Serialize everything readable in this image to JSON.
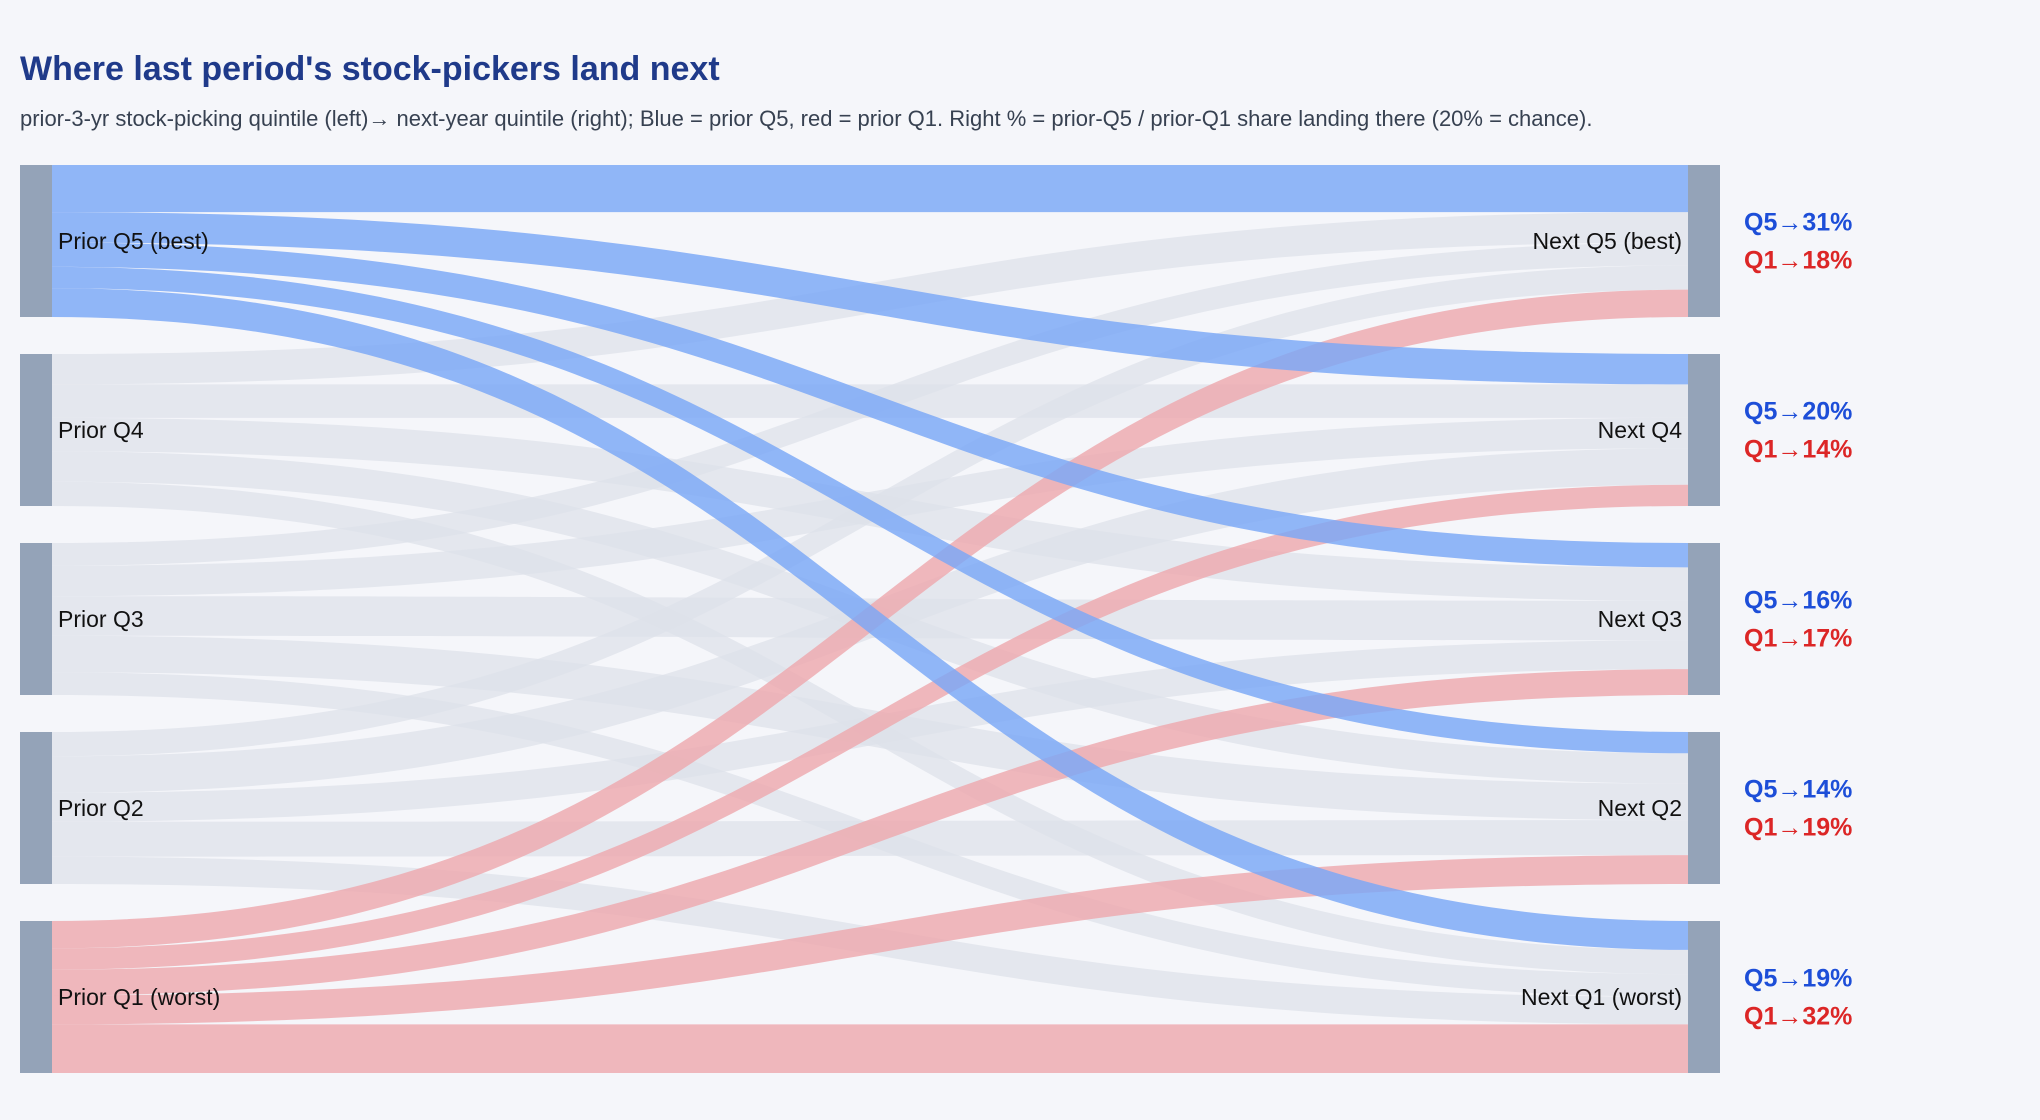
{
  "chart_data": {
    "type": "sankey",
    "title": "Where last period's stock-pickers land next",
    "subtitle": "prior-3-yr stock-picking quintile (left)→ next-year quintile (right); Blue = prior Q5, red = prior Q1. Right % = prior-Q5 / prior-Q1 share landing there (20% = chance).",
    "colors": {
      "q5_link": "#7aa7f7",
      "q1_link": "#eda7ad",
      "other_link": "#dde2ea",
      "node": "#94a3b8",
      "q5_text": "#1d4ed8",
      "q1_text": "#dc2626",
      "background": "#f5f6fa"
    },
    "sources": [
      "Prior Q5 (best)",
      "Prior Q4",
      "Prior Q3",
      "Prior Q2",
      "Prior Q1 (worst)"
    ],
    "targets": [
      "Next Q5 (best)",
      "Next Q4",
      "Next Q3",
      "Next Q2",
      "Next Q1 (worst)"
    ],
    "flow_share_percent": [
      [
        31,
        20,
        16,
        14,
        19
      ],
      [
        20,
        22,
        22,
        20,
        16
      ],
      [
        15,
        20,
        26,
        24,
        15
      ],
      [
        16,
        24,
        19,
        23,
        18
      ],
      [
        18,
        14,
        17,
        19,
        32
      ]
    ],
    "right_labels": [
      {
        "q5": "Q5→31%",
        "q1": "Q1→18%"
      },
      {
        "q5": "Q5→20%",
        "q1": "Q1→14%"
      },
      {
        "q5": "Q5→16%",
        "q1": "Q1→17%"
      },
      {
        "q5": "Q5→14%",
        "q1": "Q1→19%"
      },
      {
        "q5": "Q5→19%",
        "q1": "Q1→32%"
      }
    ]
  }
}
